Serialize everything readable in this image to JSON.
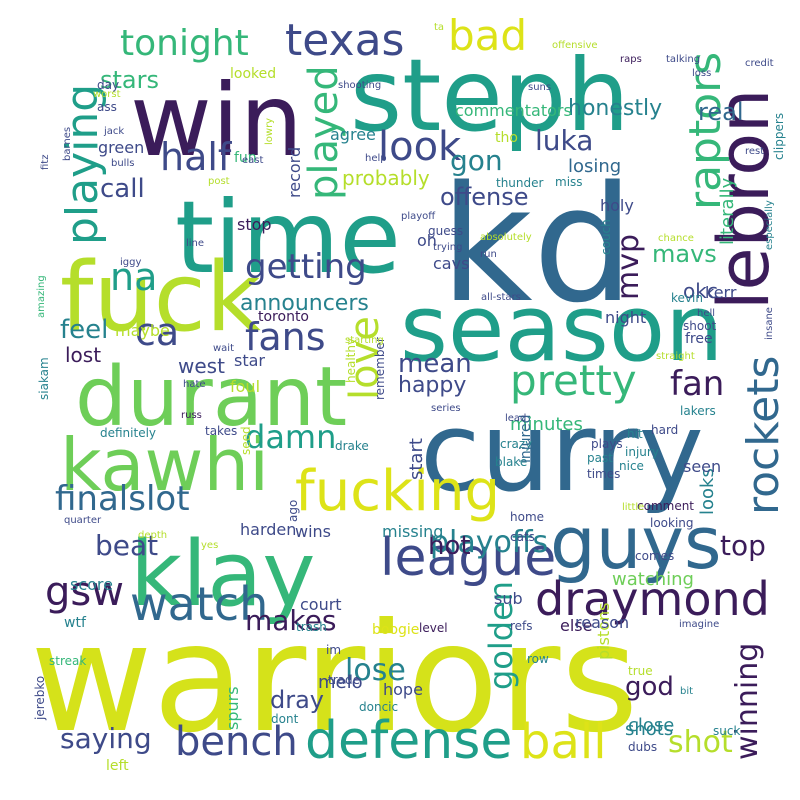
{
  "palette": {
    "dark_purple": "#3b1c5a",
    "indigo": "#3e4a89",
    "steel_blue": "#31688e",
    "teal": "#26828e",
    "sea_green": "#1f9e89",
    "green": "#35b779",
    "light_green": "#6ece58",
    "lime": "#b5de2b",
    "yellow": "#dde318",
    "pale_yellow": "#d5e21a"
  },
  "words": [
    {
      "text": "warriors",
      "color": "#d5e21a"
    },
    {
      "text": "kd",
      "color": "#31688e"
    },
    {
      "text": "curry",
      "color": "#31688e"
    },
    {
      "text": "steph",
      "color": "#1f9e89"
    },
    {
      "text": "win",
      "color": "#3b1c5a"
    },
    {
      "text": "time",
      "color": "#1f9e89"
    },
    {
      "text": "season",
      "color": "#1f9e89"
    },
    {
      "text": "fuck",
      "color": "#b5de2b"
    },
    {
      "text": "klay",
      "color": "#35b779"
    },
    {
      "text": "durant",
      "color": "#6ece58"
    },
    {
      "text": "kawhi",
      "color": "#6ece58"
    },
    {
      "text": "guys",
      "color": "#31688e"
    },
    {
      "text": "lebron",
      "color": "#3b1c5a"
    },
    {
      "text": "fucking",
      "color": "#dde318"
    },
    {
      "text": "defense",
      "color": "#1f9e89"
    },
    {
      "text": "league",
      "color": "#3e4a89"
    },
    {
      "text": "draymond",
      "color": "#3b1c5a"
    },
    {
      "text": "ball",
      "color": "#dde318"
    },
    {
      "text": "rockets",
      "color": "#31688e"
    },
    {
      "text": "raptors",
      "color": "#35b779"
    },
    {
      "text": "playing",
      "color": "#1f9e89"
    },
    {
      "text": "watch",
      "color": "#31688e"
    },
    {
      "text": "bench",
      "color": "#3e4a89"
    },
    {
      "text": "texas",
      "color": "#3e4a89"
    },
    {
      "text": "tonight",
      "color": "#35b779"
    },
    {
      "text": "bad",
      "color": "#dde318"
    },
    {
      "text": "played",
      "color": "#35b779"
    },
    {
      "text": "pretty",
      "color": "#35b779"
    },
    {
      "text": "love",
      "color": "#b5de2b"
    },
    {
      "text": "finalslot",
      "color": "#31688e"
    },
    {
      "text": "gsw",
      "color": "#3b1c5a"
    },
    {
      "text": "fans",
      "color": "#3e4a89"
    },
    {
      "text": "ca",
      "color": "#3e4a89"
    },
    {
      "text": "na",
      "color": "#1f9e89"
    },
    {
      "text": "half",
      "color": "#3e4a89"
    },
    {
      "text": "look",
      "color": "#3e4a89"
    },
    {
      "text": "getting",
      "color": "#3e4a89"
    },
    {
      "text": "damn",
      "color": "#1f9e89"
    },
    {
      "text": "playoffs",
      "color": "#26828e"
    },
    {
      "text": "golden",
      "color": "#1f9e89"
    },
    {
      "text": "winning",
      "color": "#3b1c5a"
    },
    {
      "text": "mvp",
      "color": "#3b1c5a"
    },
    {
      "text": "fan",
      "color": "#3b1c5a"
    },
    {
      "text": "saying",
      "color": "#3e4a89"
    },
    {
      "text": "lose",
      "color": "#26828e"
    },
    {
      "text": "shot",
      "color": "#b5de2b"
    },
    {
      "text": "top",
      "color": "#3b1c5a"
    },
    {
      "text": "makes",
      "color": "#3b1c5a"
    },
    {
      "text": "beat",
      "color": "#3e4a89"
    },
    {
      "text": "luka",
      "color": "#3e4a89"
    },
    {
      "text": "gon",
      "color": "#26828e"
    },
    {
      "text": "offense",
      "color": "#3e4a89"
    },
    {
      "text": "call",
      "color": "#3e4a89"
    },
    {
      "text": "stars",
      "color": "#35b779"
    },
    {
      "text": "feel",
      "color": "#26828e"
    },
    {
      "text": "announcers",
      "color": "#26828e"
    },
    {
      "text": "mean",
      "color": "#3e4a89"
    },
    {
      "text": "happy",
      "color": "#3e4a89"
    },
    {
      "text": "real",
      "color": "#31688e"
    },
    {
      "text": "honestly",
      "color": "#26828e"
    },
    {
      "text": "mavs",
      "color": "#35b779"
    },
    {
      "text": "god",
      "color": "#3b1c5a"
    },
    {
      "text": "hot",
      "color": "#3b1c5a"
    },
    {
      "text": "probably",
      "color": "#b5de2b"
    },
    {
      "text": "losing",
      "color": "#31688e"
    },
    {
      "text": "minutes",
      "color": "#35b779"
    },
    {
      "text": "dray",
      "color": "#3e4a89"
    },
    {
      "text": "shots",
      "color": "#26828e"
    },
    {
      "text": "lost",
      "color": "#3b1c5a"
    },
    {
      "text": "west",
      "color": "#3e4a89"
    },
    {
      "text": "harden",
      "color": "#3e4a89"
    },
    {
      "text": "okc",
      "color": "#3e4a89"
    },
    {
      "text": "literally",
      "color": "#35b779"
    },
    {
      "text": "watching",
      "color": "#6ece58"
    },
    {
      "text": "looks",
      "color": "#26828e"
    },
    {
      "text": "commentators",
      "color": "#35b779"
    },
    {
      "text": "melo",
      "color": "#3e4a89"
    },
    {
      "text": "spurs",
      "color": "#35b779"
    },
    {
      "text": "hope",
      "color": "#3e4a89"
    },
    {
      "text": "score",
      "color": "#26828e"
    },
    {
      "text": "court",
      "color": "#3e4a89"
    },
    {
      "text": "missing",
      "color": "#26828e"
    },
    {
      "text": "wins",
      "color": "#3e4a89"
    },
    {
      "text": "cavs",
      "color": "#3e4a89"
    },
    {
      "text": "start",
      "color": "#3e4a89"
    },
    {
      "text": "close",
      "color": "#26828e"
    },
    {
      "text": "green",
      "color": "#3e4a89"
    },
    {
      "text": "record",
      "color": "#3e4a89"
    },
    {
      "text": "agree",
      "color": "#26828e"
    },
    {
      "text": "oh",
      "color": "#3e4a89"
    },
    {
      "text": "holy",
      "color": "#3e4a89"
    },
    {
      "text": "kerr",
      "color": "#3e4a89"
    },
    {
      "text": "night",
      "color": "#3e4a89"
    },
    {
      "text": "maybe",
      "color": "#b5de2b"
    },
    {
      "text": "stop",
      "color": "#3b1c5a"
    },
    {
      "text": "toronto",
      "color": "#3b1c5a"
    },
    {
      "text": "star",
      "color": "#3e4a89"
    },
    {
      "text": "foul",
      "color": "#b5de2b"
    },
    {
      "text": "seen",
      "color": "#3e4a89"
    },
    {
      "text": "pistons",
      "color": "#b5de2b"
    },
    {
      "text": "boogie",
      "color": "#dde318"
    },
    {
      "text": "else",
      "color": "#3b1c5a"
    },
    {
      "text": "sub",
      "color": "#3e4a89"
    },
    {
      "text": "reason",
      "color": "#3e4a89"
    },
    {
      "text": "wtf",
      "color": "#26828e"
    },
    {
      "text": "fun",
      "color": "#35b779"
    },
    {
      "text": "looked",
      "color": "#b5de2b"
    },
    {
      "text": "tho",
      "color": "#b5de2b"
    },
    {
      "text": "guess",
      "color": "#3e4a89"
    },
    {
      "text": "couch",
      "color": "#26828e"
    },
    {
      "text": "free",
      "color": "#3e4a89"
    },
    {
      "text": "kevin",
      "color": "#26828e"
    },
    {
      "text": "shoot",
      "color": "#3e4a89"
    },
    {
      "text": "hit",
      "color": "#26828e"
    },
    {
      "text": "lakers",
      "color": "#26828e"
    },
    {
      "text": "hard",
      "color": "#3e4a89"
    },
    {
      "text": "injury",
      "color": "#26828e"
    },
    {
      "text": "nice",
      "color": "#26828e"
    },
    {
      "text": "plays",
      "color": "#3e4a89"
    },
    {
      "text": "past",
      "color": "#26828e"
    },
    {
      "text": "times",
      "color": "#3e4a89"
    },
    {
      "text": "crazy",
      "color": "#26828e"
    },
    {
      "text": "blake",
      "color": "#26828e"
    },
    {
      "text": "injured",
      "color": "#31688e"
    },
    {
      "text": "drake",
      "color": "#26828e"
    },
    {
      "text": "takes",
      "color": "#3e4a89"
    },
    {
      "text": "definitely",
      "color": "#26828e"
    },
    {
      "text": "siakam",
      "color": "#26828e"
    },
    {
      "text": "seed",
      "color": "#b5de2b"
    },
    {
      "text": "remember",
      "color": "#3e4a89"
    },
    {
      "text": "healthy",
      "color": "#b5de2b"
    },
    {
      "text": "comment",
      "color": "#3b1c5a"
    },
    {
      "text": "looking",
      "color": "#3e4a89"
    },
    {
      "text": "home",
      "color": "#3e4a89"
    },
    {
      "text": "cats",
      "color": "#3e4a89"
    },
    {
      "text": "comes",
      "color": "#3e4a89"
    },
    {
      "text": "refs",
      "color": "#3e4a89"
    },
    {
      "text": "trash",
      "color": "#26828e"
    },
    {
      "text": "level",
      "color": "#3b1c5a"
    },
    {
      "text": "im",
      "color": "#3e4a89"
    },
    {
      "text": "trade",
      "color": "#3e4a89"
    },
    {
      "text": "doncic",
      "color": "#26828e"
    },
    {
      "text": "dont",
      "color": "#26828e"
    },
    {
      "text": "row",
      "color": "#26828e"
    },
    {
      "text": "true",
      "color": "#b5de2b"
    },
    {
      "text": "suck",
      "color": "#26828e"
    },
    {
      "text": "dubs",
      "color": "#3e4a89"
    },
    {
      "text": "left",
      "color": "#b5de2b"
    },
    {
      "text": "jerebko",
      "color": "#3e4a89"
    },
    {
      "text": "streak",
      "color": "#35b779"
    },
    {
      "text": "imagine",
      "color": "#3e4a89"
    },
    {
      "text": "bit",
      "color": "#26828e"
    },
    {
      "text": "yes",
      "color": "#b5de2b"
    },
    {
      "text": "depth",
      "color": "#b5de2b"
    },
    {
      "text": "ago",
      "color": "#3e4a89"
    },
    {
      "text": "little",
      "color": "#b5de2b"
    },
    {
      "text": "quarter",
      "color": "#3e4a89"
    },
    {
      "text": "russ",
      "color": "#3b1c5a"
    },
    {
      "text": "series",
      "color": "#3e4a89"
    },
    {
      "text": "lead",
      "color": "#3e4a89"
    },
    {
      "text": "straight",
      "color": "#b5de2b"
    },
    {
      "text": "hate",
      "color": "#3e4a89"
    },
    {
      "text": "amazing",
      "color": "#35b779"
    },
    {
      "text": "wait",
      "color": "#3e4a89"
    },
    {
      "text": "starting",
      "color": "#b5de2b"
    },
    {
      "text": "all-stars",
      "color": "#3e4a89"
    },
    {
      "text": "insane",
      "color": "#3e4a89"
    },
    {
      "text": "hell",
      "color": "#3e4a89"
    },
    {
      "text": "chance",
      "color": "#b5de2b"
    },
    {
      "text": "run",
      "color": "#3e4a89"
    },
    {
      "text": "trying",
      "color": "#3e4a89"
    },
    {
      "text": "iggy",
      "color": "#3e4a89"
    },
    {
      "text": "line",
      "color": "#3e4a89"
    },
    {
      "text": "playoff",
      "color": "#3e4a89"
    },
    {
      "text": "absolutely",
      "color": "#b5de2b"
    },
    {
      "text": "thunder",
      "color": "#26828e"
    },
    {
      "text": "miss",
      "color": "#26828e"
    },
    {
      "text": "help",
      "color": "#3e4a89"
    },
    {
      "text": "especially",
      "color": "#26828e"
    },
    {
      "text": "clippers",
      "color": "#26828e"
    },
    {
      "text": "rest",
      "color": "#3e4a89"
    },
    {
      "text": "post",
      "color": "#b5de2b"
    },
    {
      "text": "east",
      "color": "#3e4a89"
    },
    {
      "text": "lowry",
      "color": "#b5de2b"
    },
    {
      "text": "suns",
      "color": "#3e4a89"
    },
    {
      "text": "shooting",
      "color": "#3e4a89"
    },
    {
      "text": "offensive",
      "color": "#b5de2b"
    },
    {
      "text": "raps",
      "color": "#3b1c5a"
    },
    {
      "text": "talking",
      "color": "#3e4a89"
    },
    {
      "text": "credit",
      "color": "#3e4a89"
    },
    {
      "text": "loss",
      "color": "#3e4a89"
    },
    {
      "text": "ta",
      "color": "#b5de2b"
    },
    {
      "text": "ass",
      "color": "#3e4a89"
    },
    {
      "text": "worst",
      "color": "#b5de2b"
    },
    {
      "text": "day",
      "color": "#3e4a89"
    },
    {
      "text": "jack",
      "color": "#3e4a89"
    },
    {
      "text": "barnes",
      "color": "#3e4a89"
    },
    {
      "text": "bulls",
      "color": "#3e4a89"
    },
    {
      "text": "fitz",
      "color": "#3e4a89"
    }
  ]
}
